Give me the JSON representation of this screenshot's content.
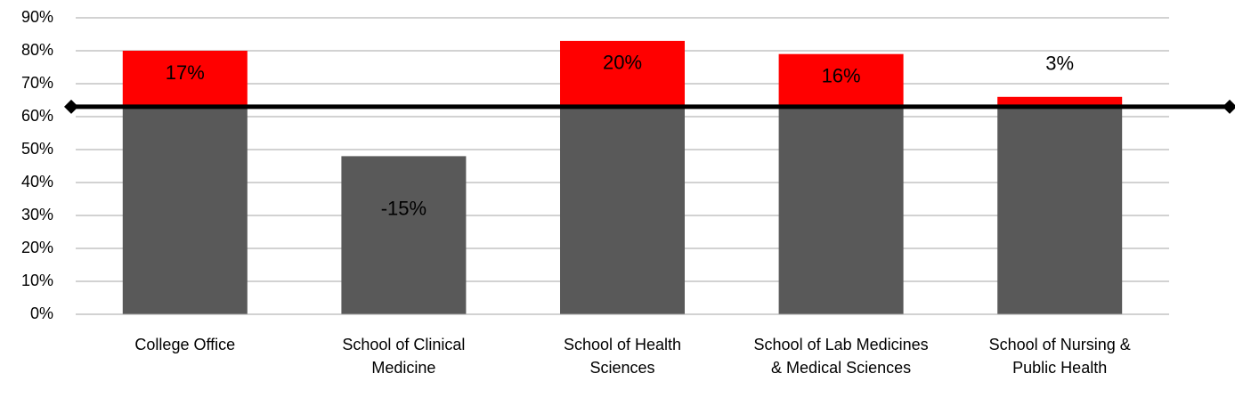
{
  "chart_data": {
    "type": "variance_bar",
    "categories": [
      "College Office",
      "School of Clinical Medicine",
      "School of Health Sciences",
      "School of Lab Medicines & Medical Sciences",
      "School of Nursing & Public Health"
    ],
    "target": 63,
    "values": [
      17,
      -15,
      20,
      16,
      3
    ],
    "value_labels": [
      "17%",
      "-15%",
      "20%",
      "16%",
      "3%"
    ],
    "base_color": "#595959",
    "above_color": "#ff0000",
    "target_color": "#000000",
    "ylim": [
      0,
      90
    ],
    "yticks": [
      {
        "value": 0,
        "label": "0%"
      },
      {
        "value": 10,
        "label": "10%"
      },
      {
        "value": 20,
        "label": "20%"
      },
      {
        "value": 30,
        "label": "30%"
      },
      {
        "value": 40,
        "label": "40%"
      },
      {
        "value": 50,
        "label": "50%"
      },
      {
        "value": 60,
        "label": "60%"
      },
      {
        "value": 70,
        "label": "70%"
      },
      {
        "value": 80,
        "label": "80%"
      },
      {
        "value": 90,
        "label": "90%"
      }
    ],
    "grid": true
  }
}
